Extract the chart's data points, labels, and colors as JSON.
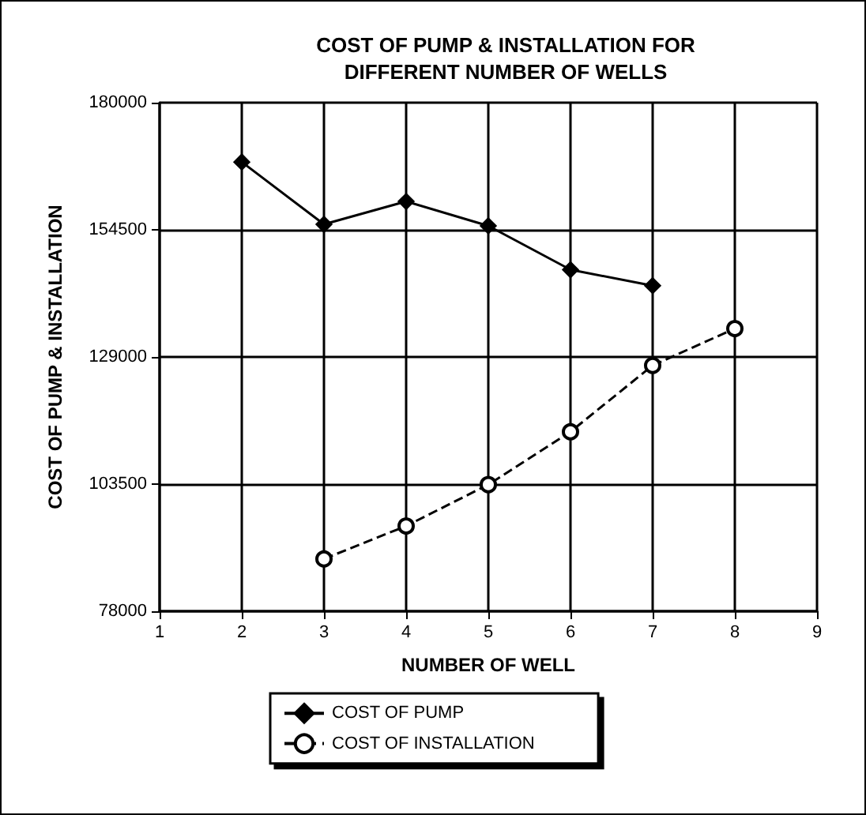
{
  "chart_data": {
    "type": "line",
    "title": "COST OF PUMP & INSTALLATION FOR\nDIFFERENT NUMBER OF WELLS",
    "xlabel": "NUMBER OF WELL",
    "ylabel": "COST OF PUMP & INSTALLATION",
    "xlim": [
      1,
      9
    ],
    "xticks": [
      1,
      2,
      3,
      4,
      5,
      6,
      7,
      8,
      9
    ],
    "ylim": [
      78000,
      180000
    ],
    "yticks": [
      78000,
      103500,
      129000,
      154500,
      180000
    ],
    "grid": true,
    "legend": "bottom",
    "series": [
      {
        "name": "COST OF PUMP",
        "color": "#000000",
        "marker": "diamond",
        "line_style": "solid",
        "x": [
          2,
          3,
          4,
          5,
          6,
          7
        ],
        "values": [
          168100,
          155600,
          160200,
          155300,
          146500,
          143300
        ]
      },
      {
        "name": "COST OF INSTALLATION",
        "color": "#000000",
        "marker": "circle",
        "line_style": "dashed",
        "x": [
          3,
          4,
          5,
          6,
          7,
          8
        ],
        "values": [
          88500,
          95100,
          103400,
          114000,
          127300,
          134700
        ]
      }
    ]
  }
}
